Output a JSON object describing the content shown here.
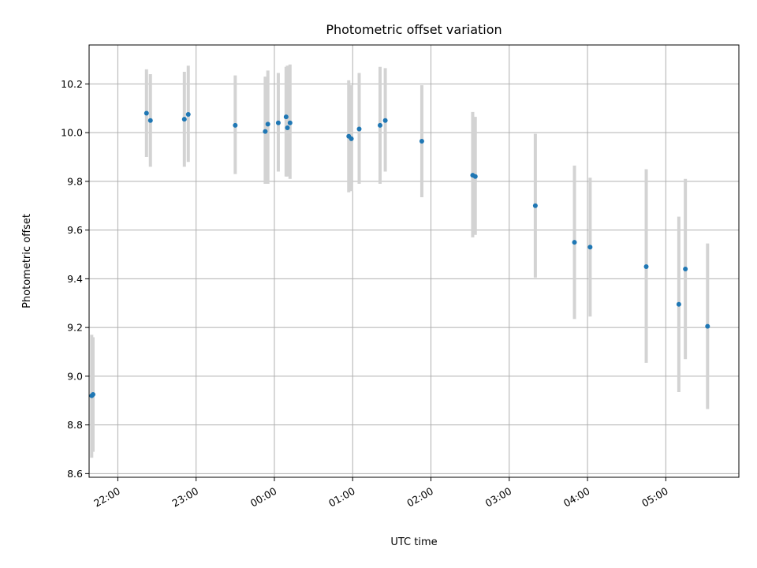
{
  "chart_data": {
    "type": "scatter",
    "title": "Photometric offset variation",
    "xlabel": "UTC time",
    "ylabel": "Photometric offset",
    "grid": true,
    "xlim": [
      "21:38",
      "05:56"
    ],
    "ylim": [
      8.585,
      10.36
    ],
    "x_ticks": [
      "22:00",
      "23:00",
      "00:00",
      "01:00",
      "02:00",
      "03:00",
      "04:00",
      "05:00"
    ],
    "y_ticks": [
      "8.6",
      "8.8",
      "9.0",
      "9.2",
      "9.4",
      "9.6",
      "9.8",
      "10.0",
      "10.2"
    ],
    "marker_color": "#1f77b4",
    "errorbar_color": "#d3d3d3",
    "points": [
      {
        "x": "21:40",
        "y": 8.92,
        "err_low": 8.665,
        "err_high": 9.17
      },
      {
        "x": "21:41",
        "y": 8.925,
        "err_low": 8.69,
        "err_high": 9.16
      },
      {
        "x": "22:22",
        "y": 10.08,
        "err_low": 9.9,
        "err_high": 10.26
      },
      {
        "x": "22:25",
        "y": 10.05,
        "err_low": 9.86,
        "err_high": 10.24
      },
      {
        "x": "22:51",
        "y": 10.055,
        "err_low": 9.86,
        "err_high": 10.25
      },
      {
        "x": "22:54",
        "y": 10.075,
        "err_low": 9.88,
        "err_high": 10.275
      },
      {
        "x": "23:30",
        "y": 10.03,
        "err_low": 9.83,
        "err_high": 10.235
      },
      {
        "x": "23:53",
        "y": 10.005,
        "err_low": 9.79,
        "err_high": 10.23
      },
      {
        "x": "23:55",
        "y": 10.035,
        "err_low": 9.79,
        "err_high": 10.255
      },
      {
        "x": "00:03",
        "y": 10.04,
        "err_low": 9.84,
        "err_high": 10.245
      },
      {
        "x": "00:09",
        "y": 10.065,
        "err_low": 9.82,
        "err_high": 10.27
      },
      {
        "x": "00:10",
        "y": 10.02,
        "err_low": 9.82,
        "err_high": 10.275
      },
      {
        "x": "00:12",
        "y": 10.04,
        "err_low": 9.81,
        "err_high": 10.28
      },
      {
        "x": "00:57",
        "y": 9.985,
        "err_low": 9.755,
        "err_high": 10.215
      },
      {
        "x": "00:59",
        "y": 9.975,
        "err_low": 9.76,
        "err_high": 10.195
      },
      {
        "x": "01:05",
        "y": 10.015,
        "err_low": 9.79,
        "err_high": 10.245
      },
      {
        "x": "01:21",
        "y": 10.03,
        "err_low": 9.79,
        "err_high": 10.27
      },
      {
        "x": "01:25",
        "y": 10.05,
        "err_low": 9.84,
        "err_high": 10.265
      },
      {
        "x": "01:53",
        "y": 9.965,
        "err_low": 9.735,
        "err_high": 10.195
      },
      {
        "x": "02:32",
        "y": 9.825,
        "err_low": 9.57,
        "err_high": 10.085
      },
      {
        "x": "02:34",
        "y": 9.82,
        "err_low": 9.58,
        "err_high": 10.065
      },
      {
        "x": "03:20",
        "y": 9.7,
        "err_low": 9.405,
        "err_high": 9.995
      },
      {
        "x": "03:50",
        "y": 9.55,
        "err_low": 9.235,
        "err_high": 9.865
      },
      {
        "x": "04:02",
        "y": 9.53,
        "err_low": 9.245,
        "err_high": 9.815
      },
      {
        "x": "04:45",
        "y": 9.45,
        "err_low": 9.055,
        "err_high": 9.85
      },
      {
        "x": "05:10",
        "y": 9.295,
        "err_low": 8.935,
        "err_high": 9.655
      },
      {
        "x": "05:15",
        "y": 9.44,
        "err_low": 9.07,
        "err_high": 9.81
      },
      {
        "x": "05:32",
        "y": 9.205,
        "err_low": 8.865,
        "err_high": 9.545
      }
    ]
  }
}
